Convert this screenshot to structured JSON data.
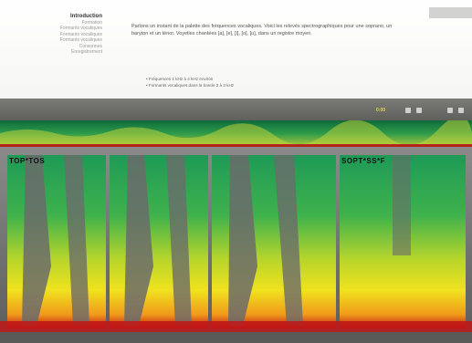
{
  "nav": {
    "title": "Introduction",
    "items": [
      "Formation",
      "Formants vocaliques",
      "Formants vocaliques",
      "Formants vocaliques",
      "Consonnes",
      "Enregistrement"
    ]
  },
  "description": {
    "paragraph": "Parlons un instant de la palette des fréquences vocaliques. Voici les relevés spectrographiques pour une soprano, un baryton et un ténor. Voyelles chantées [a], [e], [i], [o], [u], dans un registre moyen.",
    "bullets": [
      "Fréquences 1 kHz à 4 kHz environ",
      "Formants vocaliques dans la bande 2 à 3 kHz"
    ]
  },
  "toolbar": {
    "value": "0:00"
  },
  "segments": [
    {
      "label": "TOP*TOS"
    },
    {
      "label": "SOPT*SS*F"
    }
  ],
  "colors": {
    "panel_bg": "#ffffff",
    "toolbar_bg": "#6b6b67",
    "spectro_low": "#c01616",
    "spectro_mid": "#f0e21e",
    "spectro_high": "#1e9a57",
    "spectro_bg": "#7a7a7a"
  }
}
